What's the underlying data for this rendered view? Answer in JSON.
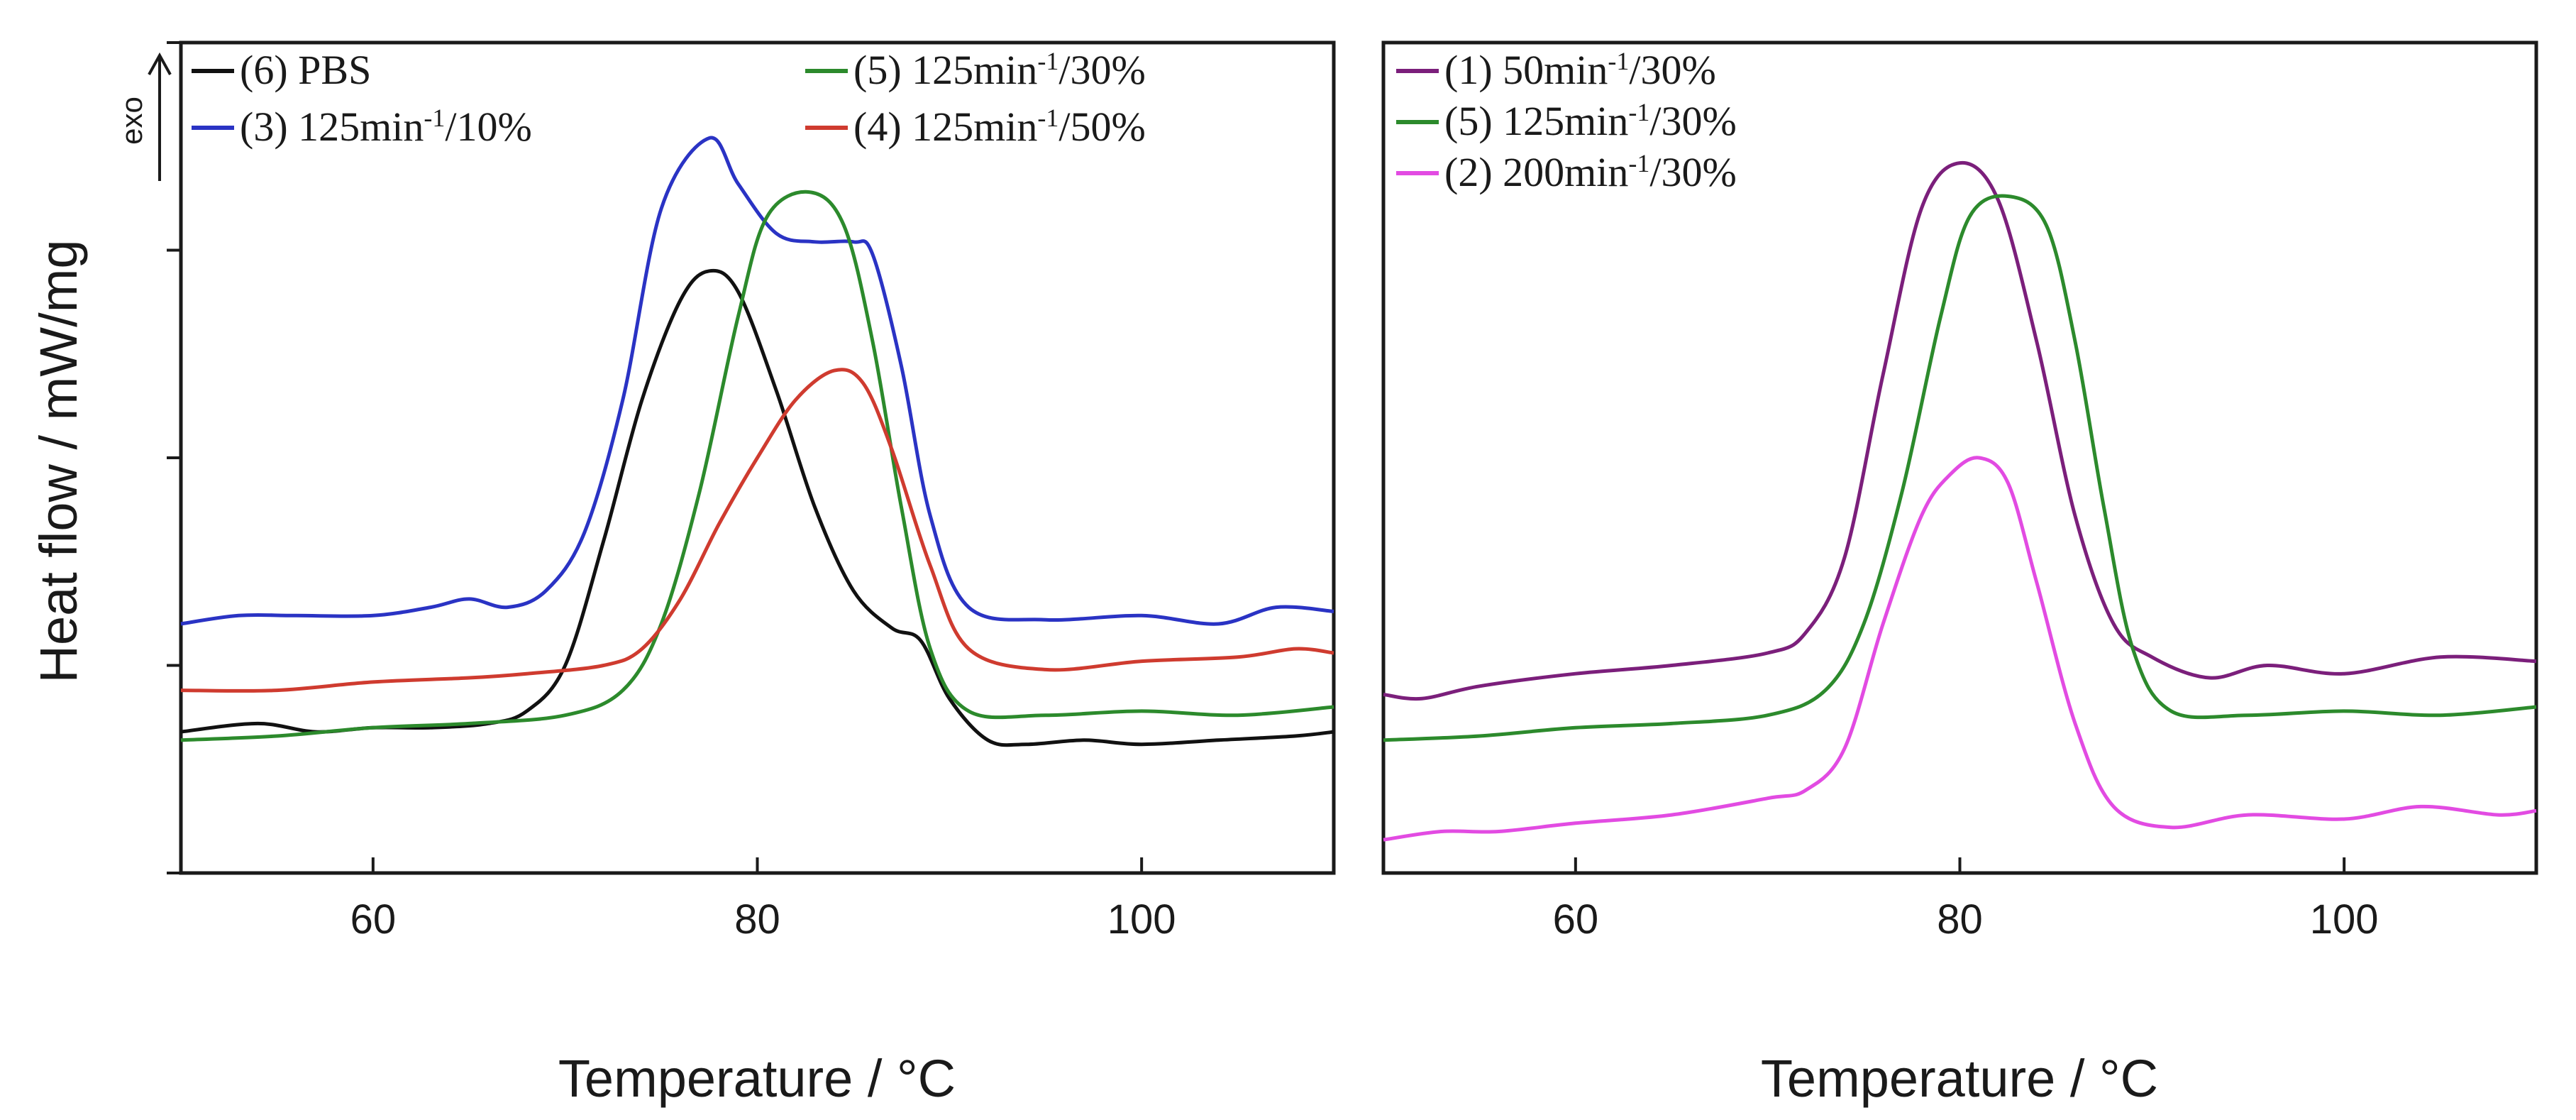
{
  "figure": {
    "ylabel": "Heat flow / mW/mg",
    "exo_label": "exo"
  },
  "chart_data": [
    {
      "type": "line",
      "panel": "left",
      "title": "",
      "xlabel": "Temperature / °C",
      "ylabel": "Heat flow / mW/mg",
      "xlim": [
        50,
        110
      ],
      "ylim": [
        0,
        1
      ],
      "xticks": [
        60,
        80,
        100
      ],
      "yticks": [
        0,
        0.25,
        0.5,
        0.75,
        1.0
      ],
      "show_ytick_labels": false,
      "grid": false,
      "legend_placement": "top",
      "series": [
        {
          "id": "s6",
          "name": "(6) PBS",
          "color": "#111111",
          "legend_col": 0,
          "legend_row": 0,
          "legend": {
            "prefix": "(6) PBS",
            "unit": "",
            "sup": "",
            "suffix": ""
          },
          "x": [
            50,
            54,
            57,
            60,
            63,
            66,
            68,
            70,
            72,
            74,
            76,
            77.5,
            79,
            81,
            83,
            85,
            87,
            88.5,
            90,
            92,
            94,
            97,
            100,
            104,
            108,
            110
          ],
          "y": [
            0.17,
            0.18,
            0.17,
            0.175,
            0.175,
            0.18,
            0.195,
            0.25,
            0.4,
            0.57,
            0.69,
            0.725,
            0.7,
            0.58,
            0.44,
            0.34,
            0.295,
            0.28,
            0.21,
            0.16,
            0.155,
            0.16,
            0.155,
            0.16,
            0.165,
            0.17
          ]
        },
        {
          "id": "s3",
          "name": "(3) 125min-1/10%",
          "color": "#2a33c4",
          "legend_col": 0,
          "legend_row": 1,
          "legend": {
            "prefix": "(3) 125",
            "unit": "min",
            "sup": "-1",
            "suffix": "/10%"
          },
          "x": [
            50,
            53,
            56,
            60,
            63,
            65,
            67,
            69,
            71,
            73,
            75,
            77.5,
            79,
            81,
            83,
            85,
            86,
            87.5,
            89,
            91,
            95,
            100,
            104,
            107,
            110
          ],
          "y": [
            0.3,
            0.31,
            0.31,
            0.31,
            0.32,
            0.33,
            0.32,
            0.34,
            0.41,
            0.57,
            0.8,
            0.885,
            0.83,
            0.77,
            0.76,
            0.76,
            0.745,
            0.61,
            0.43,
            0.32,
            0.305,
            0.31,
            0.3,
            0.32,
            0.315
          ]
        },
        {
          "id": "s5",
          "name": "(5) 125min-1/30%",
          "color": "#2c8a2c",
          "legend_col": 1,
          "legend_row": 0,
          "legend": {
            "prefix": "(5) 125",
            "unit": "min",
            "sup": "-1",
            "suffix": "/30%"
          },
          "x": [
            50,
            55,
            60,
            65,
            70,
            73,
            75,
            77,
            79,
            80.5,
            82.7,
            84.5,
            86,
            87.5,
            89,
            91,
            95,
            100,
            105,
            110
          ],
          "y": [
            0.16,
            0.165,
            0.175,
            0.18,
            0.19,
            0.22,
            0.3,
            0.46,
            0.67,
            0.79,
            0.82,
            0.78,
            0.64,
            0.44,
            0.27,
            0.195,
            0.19,
            0.195,
            0.19,
            0.2
          ]
        },
        {
          "id": "s4",
          "name": "(4) 125min-1/50%",
          "color": "#cf3b2f",
          "legend_col": 1,
          "legend_row": 1,
          "legend": {
            "prefix": "(4) 125",
            "unit": "min",
            "sup": "-1",
            "suffix": "/50%"
          },
          "x": [
            50,
            55,
            60,
            65,
            68,
            72,
            74,
            76,
            78,
            80,
            82,
            84,
            85.5,
            87,
            89,
            91,
            95,
            100,
            105,
            108,
            110
          ],
          "y": [
            0.22,
            0.22,
            0.23,
            0.235,
            0.24,
            0.25,
            0.27,
            0.33,
            0.42,
            0.5,
            0.57,
            0.605,
            0.59,
            0.51,
            0.37,
            0.27,
            0.245,
            0.255,
            0.26,
            0.27,
            0.265
          ]
        }
      ]
    },
    {
      "type": "line",
      "panel": "right",
      "title": "",
      "xlabel": "Temperature / °C",
      "ylabel": "",
      "xlim": [
        50,
        110
      ],
      "ylim": [
        0,
        1
      ],
      "xticks": [
        60,
        80,
        100
      ],
      "yticks": [],
      "show_ytick_labels": false,
      "grid": false,
      "legend_placement": "top-left",
      "series": [
        {
          "id": "s1",
          "name": "(1) 50min-1/30%",
          "color": "#7b1f7b",
          "legend_col": 0,
          "legend_row": 0,
          "legend": {
            "prefix": "(1)   50",
            "unit": "min",
            "sup": "-1",
            "suffix": "/30%"
          },
          "x": [
            50,
            52,
            55,
            60,
            65,
            70,
            72,
            74,
            76,
            78,
            80,
            82,
            84,
            86,
            88,
            90,
            93,
            96,
            100,
            105,
            110
          ],
          "y": [
            0.215,
            0.21,
            0.225,
            0.24,
            0.25,
            0.265,
            0.29,
            0.38,
            0.6,
            0.8,
            0.855,
            0.81,
            0.64,
            0.43,
            0.3,
            0.26,
            0.235,
            0.25,
            0.24,
            0.26,
            0.255
          ]
        },
        {
          "id": "s5r",
          "name": "(5) 125min-1/30%",
          "color": "#2c8a2c",
          "legend_col": 0,
          "legend_row": 1,
          "legend": {
            "prefix": "(5) 125",
            "unit": "min",
            "sup": "-1",
            "suffix": "/30%"
          },
          "x": [
            50,
            55,
            60,
            65,
            70,
            73,
            75,
            77,
            79,
            80.5,
            82.5,
            84.5,
            86,
            87.5,
            89,
            91,
            95,
            100,
            105,
            110
          ],
          "y": [
            0.16,
            0.165,
            0.175,
            0.18,
            0.19,
            0.22,
            0.3,
            0.46,
            0.67,
            0.79,
            0.815,
            0.78,
            0.64,
            0.44,
            0.27,
            0.195,
            0.19,
            0.195,
            0.19,
            0.2
          ]
        },
        {
          "id": "s2",
          "name": "(2) 200min-1/30%",
          "color": "#e24be2",
          "legend_col": 0,
          "legend_row": 2,
          "legend": {
            "prefix": "(2) 200",
            "unit": "min",
            "sup": "-1",
            "suffix": "/30%"
          },
          "x": [
            50,
            53,
            56,
            60,
            65,
            70,
            72,
            74,
            76,
            78,
            79.5,
            81,
            82.5,
            84,
            86,
            88,
            91,
            95,
            100,
            104,
            108,
            110
          ],
          "y": [
            0.04,
            0.05,
            0.05,
            0.06,
            0.07,
            0.09,
            0.1,
            0.15,
            0.3,
            0.43,
            0.48,
            0.5,
            0.47,
            0.35,
            0.18,
            0.08,
            0.055,
            0.07,
            0.065,
            0.08,
            0.07,
            0.075
          ]
        }
      ]
    }
  ]
}
